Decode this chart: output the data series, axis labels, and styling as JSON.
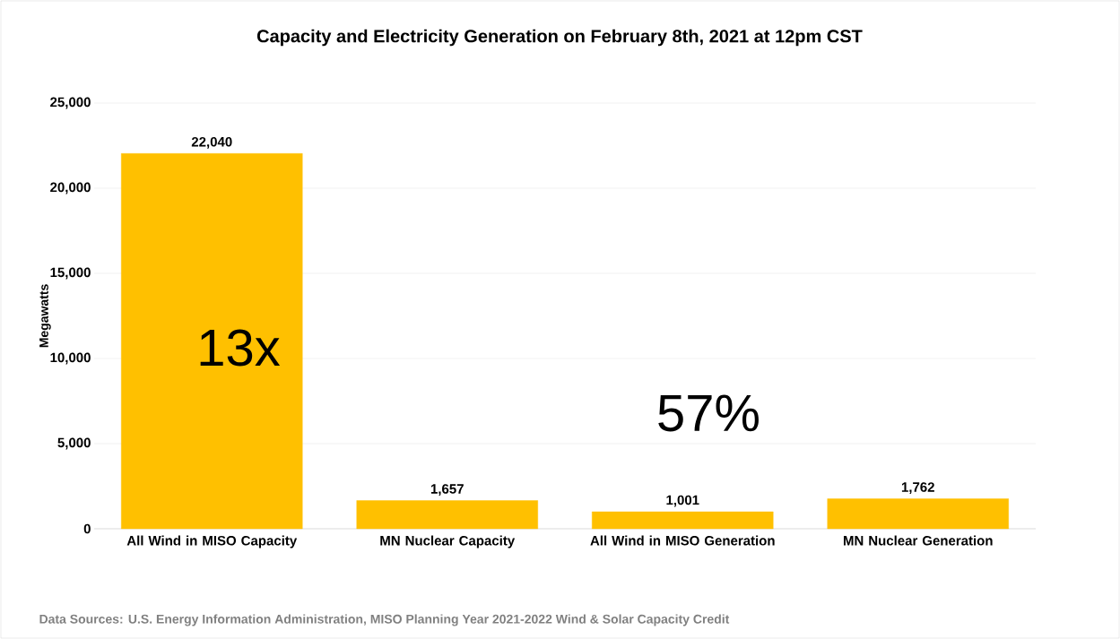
{
  "chart_data": {
    "type": "bar",
    "title": "Capacity and Electricity Generation on February 8th,  2021 at 12pm CST",
    "ylabel": "Megawatts",
    "categories": [
      "All Wind in MISO Capacity",
      "MN Nuclear Capacity",
      "All Wind in MISO Generation",
      "MN Nuclear Generation"
    ],
    "values": [
      22040,
      1657,
      1001,
      1762
    ],
    "value_labels": [
      "22,040",
      "1,657",
      "1,001",
      "1,762"
    ],
    "color": "#ffc000",
    "ylim": [
      0,
      25000
    ],
    "yticks": [
      {
        "value": 0,
        "label": "0"
      },
      {
        "value": 5000,
        "label": "5,000"
      },
      {
        "value": 10000,
        "label": "10,000"
      },
      {
        "value": 15000,
        "label": "15,000"
      },
      {
        "value": 20000,
        "label": "20,000"
      },
      {
        "value": 25000,
        "label": "25,000"
      }
    ],
    "grid": "y",
    "annotations": [
      "13x",
      "57%",
      "Data Sources: U.S. Energy Information Administration,  MISO Planning Year 2021-2022 Wind & Solar Capacity Credit"
    ]
  }
}
